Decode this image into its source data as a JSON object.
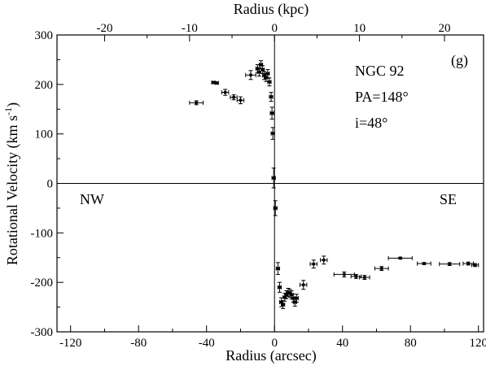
{
  "chart_data": {
    "type": "scatter",
    "panel_label": "(g)",
    "xlabel": "Radius (arcsec)",
    "ylabel": "Rotational Velocity (km s",
    "ylabel_superscript": "-1",
    "ylabel_close": ")",
    "top_xlabel": "Radius (kpc)",
    "xlim": [
      -128,
      123
    ],
    "ylim": [
      -300,
      300
    ],
    "kpc_per_arcsec": 0.2,
    "x_ticks": [
      -120,
      -80,
      -40,
      0,
      40,
      80,
      120
    ],
    "x_tick_labels": [
      "-120",
      "-80",
      "-40",
      "0",
      "40",
      "80",
      "120"
    ],
    "y_ticks": [
      -300,
      -200,
      -100,
      0,
      100,
      200,
      300
    ],
    "y_tick_labels": [
      "-300",
      "-200",
      "-100",
      "0",
      "100",
      "200",
      "300"
    ],
    "top_ticks_kpc": [
      -20,
      -10,
      0,
      10,
      20
    ],
    "top_tick_labels": [
      "-20",
      "-10",
      "0",
      "10",
      "20"
    ],
    "grid": false,
    "reference_lines": [
      {
        "axis": "x",
        "value": 0
      },
      {
        "axis": "y",
        "value": 0
      }
    ],
    "annotations": {
      "galaxy": "NGC 92",
      "pa": "PA=148°",
      "inclination": "i=48°",
      "left_side": "NW",
      "right_side": "SE"
    },
    "series": [
      {
        "points": [
          {
            "x": -46,
            "y": 163,
            "xerr": 4,
            "yerr": 4
          },
          {
            "x": -36,
            "y": 204,
            "xerr": 1,
            "yerr": 2
          },
          {
            "x": -34,
            "y": 203,
            "xerr": 1,
            "yerr": 2
          },
          {
            "x": -29,
            "y": 184,
            "xerr": 2,
            "yerr": 6
          },
          {
            "x": -24,
            "y": 174,
            "xerr": 2,
            "yerr": 5
          },
          {
            "x": -20,
            "y": 168,
            "xerr": 2,
            "yerr": 7
          },
          {
            "x": -14,
            "y": 219,
            "xerr": 3,
            "yerr": 9
          },
          {
            "x": -10,
            "y": 232,
            "xerr": 1,
            "yerr": 8
          },
          {
            "x": -9,
            "y": 225,
            "xerr": 1,
            "yerr": 8
          },
          {
            "x": -8,
            "y": 240,
            "xerr": 1,
            "yerr": 8
          },
          {
            "x": -7,
            "y": 230,
            "xerr": 1,
            "yerr": 8
          },
          {
            "x": -6,
            "y": 218,
            "xerr": 1,
            "yerr": 8
          },
          {
            "x": -5,
            "y": 214,
            "xerr": 1,
            "yerr": 8
          },
          {
            "x": -4,
            "y": 222,
            "xerr": 1,
            "yerr": 8
          },
          {
            "x": -3,
            "y": 205,
            "xerr": 1,
            "yerr": 8
          },
          {
            "x": -2,
            "y": 175,
            "xerr": 1,
            "yerr": 9
          },
          {
            "x": -1.5,
            "y": 142,
            "xerr": 1,
            "yerr": 12
          },
          {
            "x": -1,
            "y": 101,
            "xerr": 1,
            "yerr": 12
          },
          {
            "x": -0.5,
            "y": 11,
            "xerr": 1,
            "yerr": 20
          },
          {
            "x": 0.5,
            "y": -50,
            "xerr": 1,
            "yerr": 15
          },
          {
            "x": 2,
            "y": -172,
            "xerr": 1,
            "yerr": 12
          },
          {
            "x": 3,
            "y": -210,
            "xerr": 1,
            "yerr": 10
          },
          {
            "x": 4,
            "y": -240,
            "xerr": 1,
            "yerr": 9
          },
          {
            "x": 5,
            "y": -245,
            "xerr": 1,
            "yerr": 8
          },
          {
            "x": 6,
            "y": -230,
            "xerr": 1,
            "yerr": 8
          },
          {
            "x": 7,
            "y": -225,
            "xerr": 1,
            "yerr": 8
          },
          {
            "x": 8,
            "y": -220,
            "xerr": 1,
            "yerr": 8
          },
          {
            "x": 9,
            "y": -222,
            "xerr": 1,
            "yerr": 8
          },
          {
            "x": 10,
            "y": -225,
            "xerr": 1,
            "yerr": 8
          },
          {
            "x": 11,
            "y": -232,
            "xerr": 1,
            "yerr": 8
          },
          {
            "x": 12,
            "y": -240,
            "xerr": 1,
            "yerr": 8
          },
          {
            "x": 13,
            "y": -232,
            "xerr": 1,
            "yerr": 8
          },
          {
            "x": 17,
            "y": -205,
            "xerr": 2,
            "yerr": 9
          },
          {
            "x": 23,
            "y": -163,
            "xerr": 2,
            "yerr": 8
          },
          {
            "x": 29,
            "y": -155,
            "xerr": 2,
            "yerr": 8
          },
          {
            "x": 41,
            "y": -184,
            "xerr": 6,
            "yerr": 5
          },
          {
            "x": 48,
            "y": -188,
            "xerr": 3,
            "yerr": 4
          },
          {
            "x": 53,
            "y": -190,
            "xerr": 3,
            "yerr": 4
          },
          {
            "x": 63,
            "y": -172,
            "xerr": 4,
            "yerr": 4
          },
          {
            "x": 74,
            "y": -151,
            "xerr": 7,
            "yerr": 2
          },
          {
            "x": 88,
            "y": -162,
            "xerr": 4,
            "yerr": 2
          },
          {
            "x": 103,
            "y": -163,
            "xerr": 6,
            "yerr": 3
          },
          {
            "x": 114,
            "y": -162,
            "xerr": 3,
            "yerr": 3
          },
          {
            "x": 118,
            "y": -165,
            "xerr": 2,
            "yerr": 3
          }
        ]
      }
    ]
  }
}
